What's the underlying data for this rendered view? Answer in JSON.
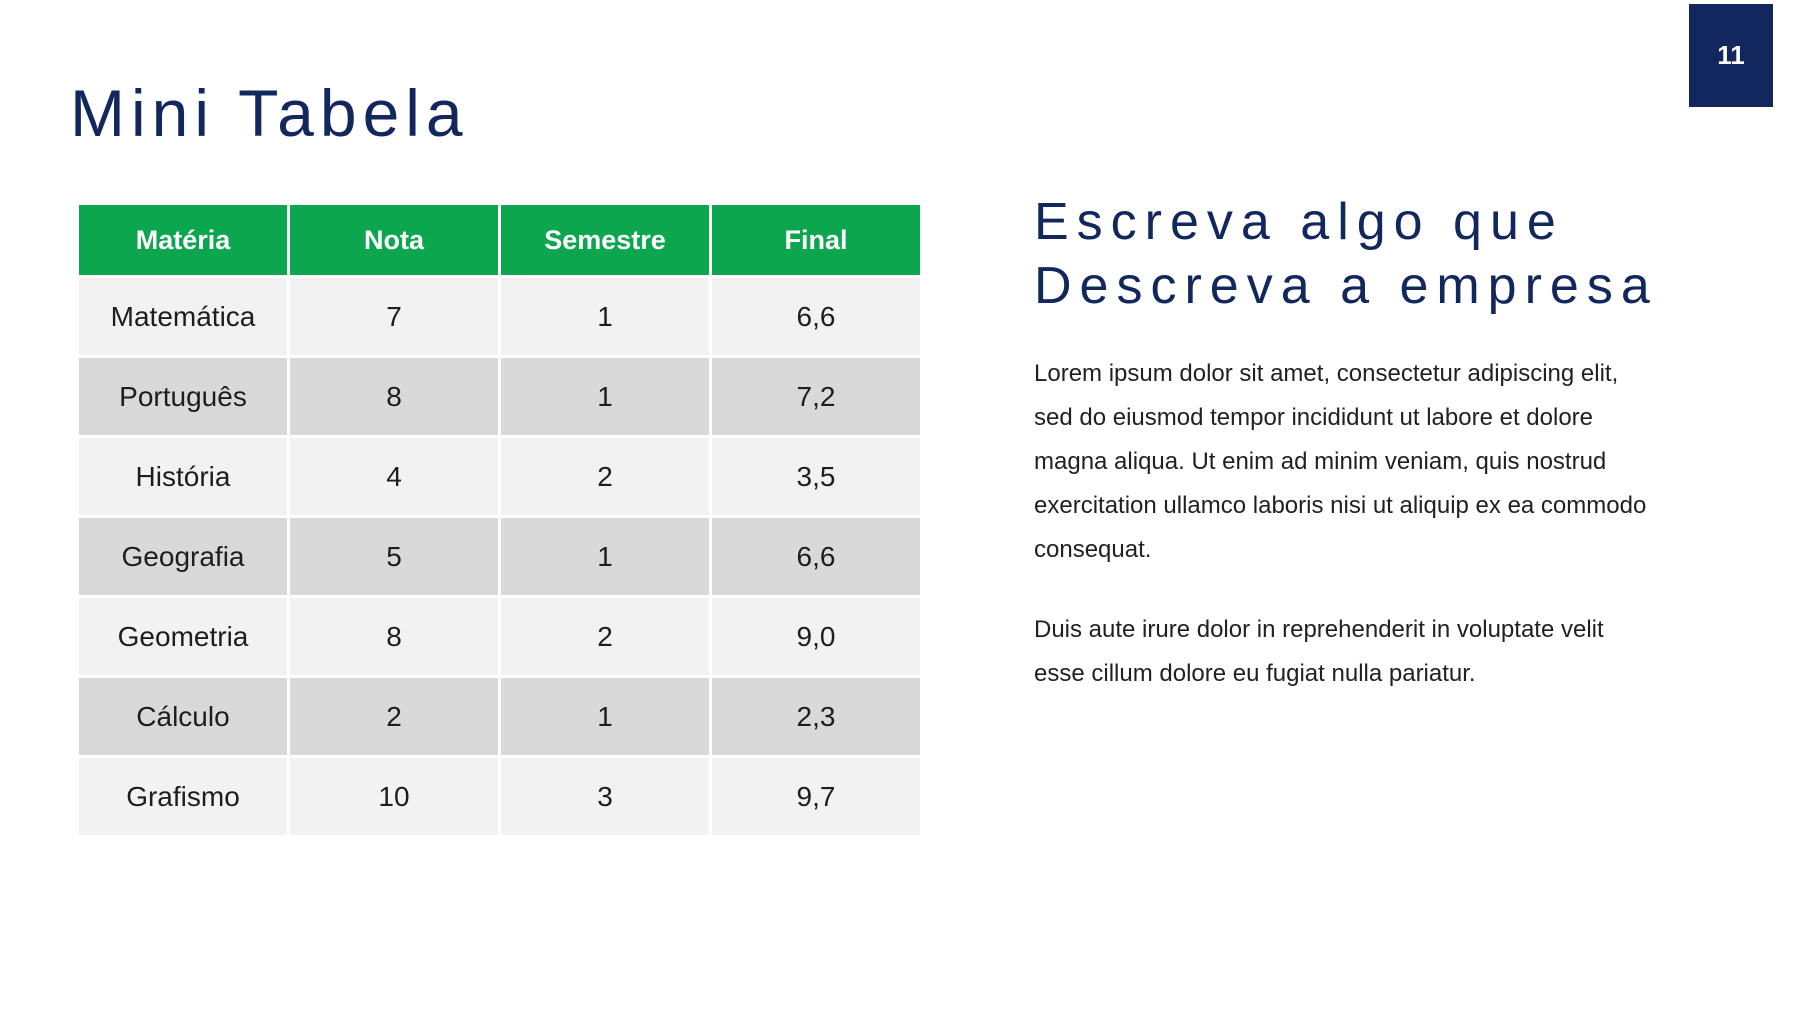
{
  "slide": {
    "page_number": "11",
    "title": "Mini Tabela",
    "colors": {
      "header_green": "#0ca64f",
      "accent_navy": "#12275e",
      "row_light": "#f2f2f2",
      "row_dark": "#d9d9d9"
    },
    "table": {
      "headers": [
        "Matéria",
        "Nota",
        "Semestre",
        "Final"
      ],
      "rows": [
        [
          "Matemática",
          "7",
          "1",
          "6,6"
        ],
        [
          "Português",
          "8",
          "1",
          "7,2"
        ],
        [
          "História",
          "4",
          "2",
          "3,5"
        ],
        [
          "Geografia",
          "5",
          "1",
          "6,6"
        ],
        [
          "Geometria",
          "8",
          "2",
          "9,0"
        ],
        [
          "Cálculo",
          "2",
          "1",
          "2,3"
        ],
        [
          "Grafismo",
          "10",
          "3",
          "9,7"
        ]
      ]
    },
    "right": {
      "heading_lines": [
        "Escreva algo que",
        "Descreva a empresa"
      ],
      "paragraph1_lines": [
        "Lorem ipsum dolor sit amet, consectetur adipiscing elit,",
        "sed do eiusmod tempor incididunt ut labore et dolore",
        "magna aliqua. Ut enim ad minim veniam, quis nostrud",
        "exercitation ullamco laboris nisi ut aliquip ex ea commodo",
        "consequat."
      ],
      "paragraph2_lines": [
        "Duis aute irure dolor in reprehenderit in voluptate velit",
        "esse cillum dolore eu fugiat nulla pariatur."
      ]
    }
  }
}
